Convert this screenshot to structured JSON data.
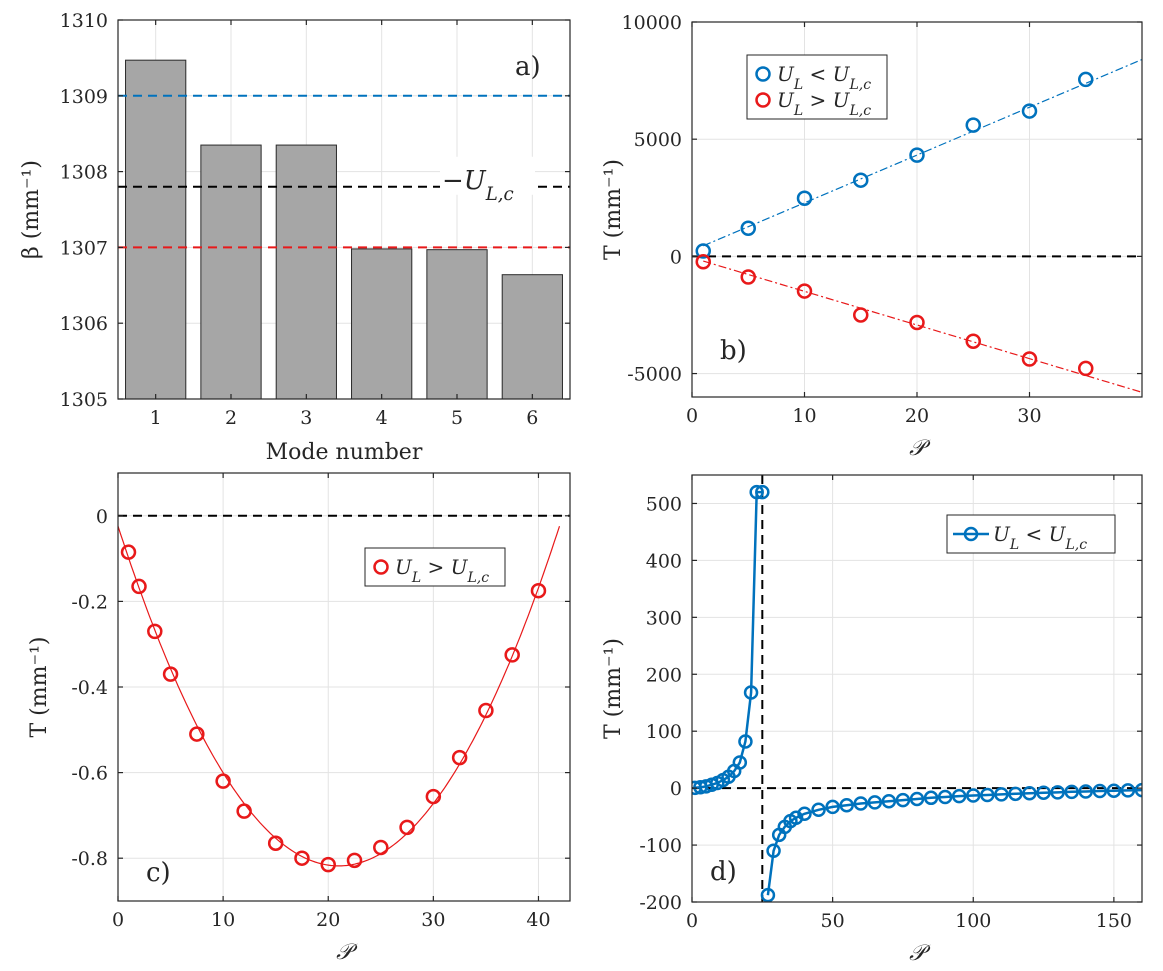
{
  "chart_data": [
    {
      "type": "bar",
      "panel_label": "a)",
      "xlabel": "Mode number",
      "ylabel": "β (mm⁻¹)",
      "categories": [
        "1",
        "2",
        "3",
        "4",
        "5",
        "6"
      ],
      "values": [
        1309.47,
        1308.35,
        1308.35,
        1306.98,
        1306.97,
        1306.64
      ],
      "ylim": [
        1305,
        1310
      ],
      "yticks": [
        1305,
        1306,
        1307,
        1308,
        1309,
        1310
      ],
      "bar_color": "#a6a6a6",
      "reference_lines": [
        {
          "value": 1309.0,
          "color": "#0072bd"
        },
        {
          "value": 1307.8,
          "color": "#000000",
          "label": "−U_{L,c}"
        },
        {
          "value": 1307.0,
          "color": "#e8191a"
        }
      ],
      "annotation": "−U_{L,c}",
      "grid": true
    },
    {
      "type": "scatter",
      "panel_label": "b)",
      "xlabel": "𝒫",
      "ylabel": "T (mm⁻¹)",
      "xlim": [
        0,
        40
      ],
      "ylim": [
        -6000,
        10000
      ],
      "xticks": [
        0,
        10,
        20,
        30
      ],
      "yticks": [
        -5000,
        0,
        5000,
        10000
      ],
      "legend_position": "top-left",
      "series": [
        {
          "name": "U_L < U_{L,c}",
          "color": "#0072bd",
          "x": [
            1,
            5,
            10,
            15,
            20,
            25,
            30,
            35
          ],
          "y": [
            230,
            1200,
            2480,
            3250,
            4320,
            5600,
            6200,
            7550
          ],
          "fit": {
            "x": [
              1,
              40
            ],
            "y": [
              450,
              8400
            ]
          }
        },
        {
          "name": "U_L > U_{L,c}",
          "color": "#e8191a",
          "x": [
            1,
            5,
            10,
            15,
            20,
            25,
            30,
            35
          ],
          "y": [
            -230,
            -880,
            -1480,
            -2500,
            -2820,
            -3620,
            -4380,
            -4780
          ],
          "fit": {
            "x": [
              1,
              40
            ],
            "y": [
              -200,
              -5800
            ]
          }
        }
      ],
      "zero_line": true,
      "grid": true
    },
    {
      "type": "scatter",
      "panel_label": "c)",
      "xlabel": "𝒫",
      "ylabel": "T (mm⁻¹)",
      "xlim": [
        0,
        43
      ],
      "ylim": [
        -0.9,
        0.1
      ],
      "xticks": [
        0,
        10,
        20,
        30,
        40
      ],
      "yticks": [
        -0.8,
        -0.6,
        -0.4,
        -0.2,
        0
      ],
      "legend_position": "top-right",
      "series": [
        {
          "name": "U_L > U_{L,c}",
          "color": "#e8191a",
          "x": [
            1,
            2,
            3.5,
            5,
            7.5,
            10,
            12,
            15,
            17.5,
            20,
            22.5,
            25,
            27.5,
            30,
            32.5,
            35,
            37.5,
            40
          ],
          "y": [
            -0.085,
            -0.165,
            -0.27,
            -0.37,
            -0.51,
            -0.62,
            -0.69,
            -0.765,
            -0.8,
            -0.815,
            -0.805,
            -0.775,
            -0.728,
            -0.656,
            -0.565,
            -0.455,
            -0.325,
            -0.175
          ],
          "fit": {
            "vertex_x": 21,
            "vertex_y": -0.818,
            "a": 0.0018,
            "x_range": [
              0,
              42
            ]
          }
        }
      ],
      "zero_line": true,
      "grid": true
    },
    {
      "type": "line",
      "panel_label": "d)",
      "xlabel": "𝒫",
      "ylabel": "T (mm⁻¹)",
      "xlim": [
        0,
        160
      ],
      "ylim": [
        -200,
        550
      ],
      "xticks": [
        0,
        50,
        100,
        150
      ],
      "yticks": [
        -200,
        -100,
        0,
        100,
        200,
        300,
        400,
        500
      ],
      "legend_position": "top-right",
      "series": [
        {
          "name": "U_L < U_{L,c}",
          "color": "#0072bd",
          "segments": [
            {
              "x": [
                1,
                3,
                5,
                7,
                9,
                11,
                13,
                15,
                17,
                19,
                21,
                23,
                25
              ],
              "y": [
                0.5,
                1.5,
                3,
                6,
                9,
                14,
                20,
                30,
                45,
                82,
                168,
                520,
                520
              ]
            },
            {
              "x": [
                27,
                29,
                31,
                33,
                35,
                37,
                40,
                45,
                50,
                55,
                60,
                65,
                70,
                75,
                80,
                85,
                90,
                95,
                100,
                105,
                110,
                115,
                120,
                125,
                130,
                135,
                140,
                145,
                150,
                155,
                160
              ],
              "y": [
                -188,
                -110,
                -82,
                -68,
                -58,
                -52,
                -45,
                -38,
                -33,
                -30,
                -27,
                -25,
                -23,
                -21,
                -19,
                -17,
                -15.5,
                -14,
                -13,
                -12,
                -11,
                -10,
                -9,
                -8,
                -7.5,
                -6.5,
                -6,
                -5,
                -4.5,
                -4,
                -3.5
              ]
            }
          ]
        }
      ],
      "zero_line": true,
      "vertical_line": 25,
      "grid": true
    }
  ]
}
